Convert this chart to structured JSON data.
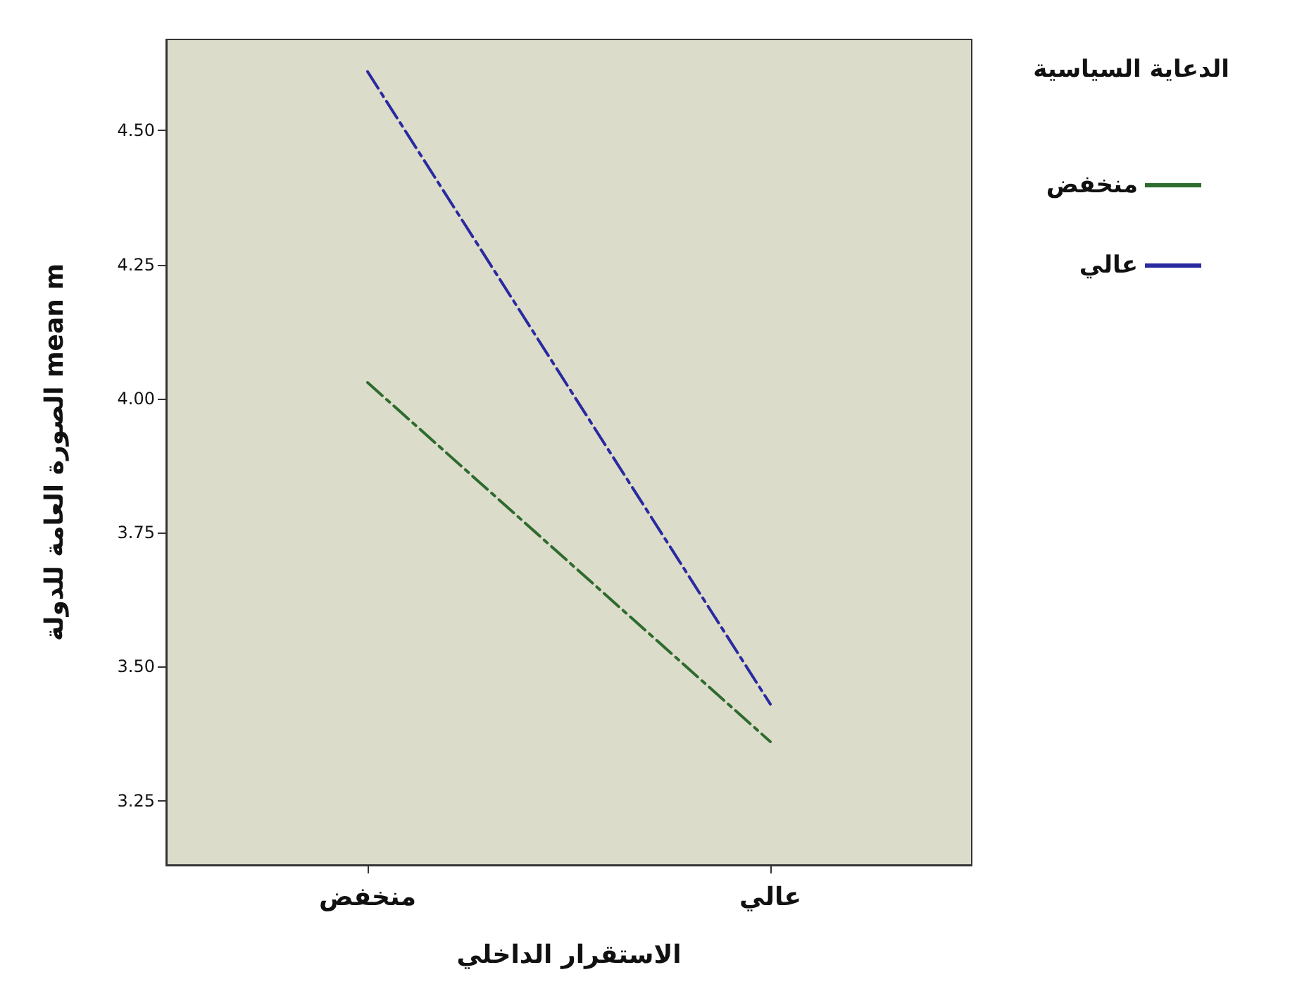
{
  "chart_data": {
    "type": "line",
    "xlabel": "الاستقرار الداخلي",
    "ylabel": "الصورة العامة للدولة mean m",
    "legend_title": "الدعاية السياسية",
    "categories": [
      "منخفض",
      "عالي"
    ],
    "series": [
      {
        "name": "منخفض",
        "color": "#2e6b2e",
        "values": [
          4.03,
          3.36
        ],
        "line_style": "dashed"
      },
      {
        "name": "عالي",
        "color": "#2a2aa0",
        "values": [
          4.61,
          3.43
        ],
        "line_style": "dashed"
      }
    ],
    "ylim": [
      3.13,
      4.67
    ],
    "yticks": [
      {
        "value": 3.25,
        "label": "3.25"
      },
      {
        "value": 3.5,
        "label": "3.50"
      },
      {
        "value": 3.75,
        "label": "3.75"
      },
      {
        "value": 4.0,
        "label": "4.00"
      },
      {
        "value": 4.25,
        "label": "4.25"
      },
      {
        "value": 4.5,
        "label": "4.50"
      }
    ],
    "grid": false,
    "legend": "top right",
    "marker": "none"
  }
}
